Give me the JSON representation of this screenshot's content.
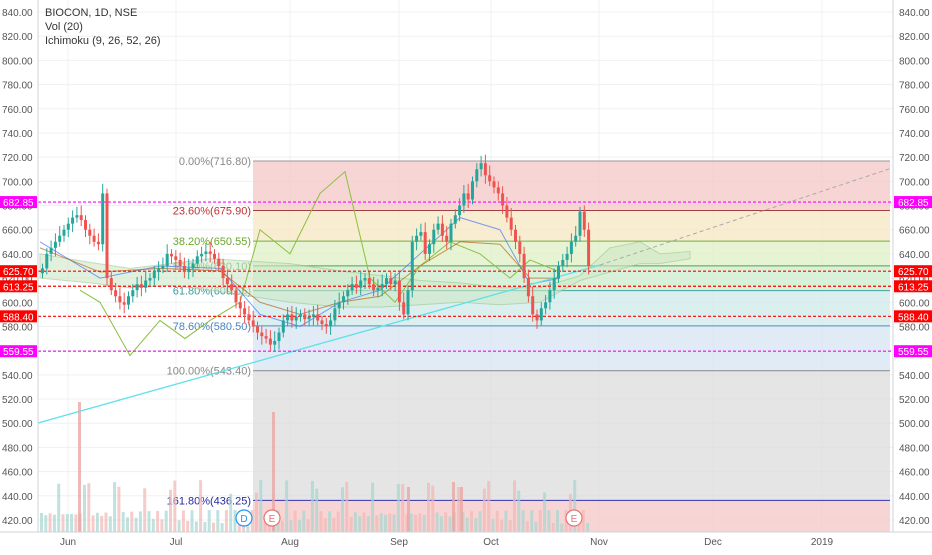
{
  "legend": {
    "title": "BIOCON, 1D, NSE",
    "vol": "Vol (20)",
    "ichimoku": "Ichimoku (9, 26, 52, 26)"
  },
  "colors": {
    "up": "#26a69a",
    "down": "#ef5350",
    "magenta_line": "#ff00ff",
    "red_line": "#ff0000",
    "trend_line": "#5ee1e8",
    "price_badge_magenta": "#ff00ff",
    "price_badge_red": "#ff0000"
  },
  "axis": {
    "y_ticks": [
      "840.00",
      "820.00",
      "800.00",
      "780.00",
      "760.00",
      "740.00",
      "720.00",
      "700.00",
      "680.00",
      "660.00",
      "640.00",
      "620.00",
      "600.00",
      "580.00",
      "560.00",
      "540.00",
      "520.00",
      "500.00",
      "480.00",
      "460.00",
      "440.00",
      "420.00"
    ],
    "x_labels": [
      "Jun",
      "Jul",
      "Aug",
      "Sep",
      "Oct",
      "Nov",
      "Dec",
      "2019"
    ]
  },
  "price_badges": [
    {
      "text": "682.85",
      "value": 682.85,
      "color": "magenta"
    },
    {
      "text": "625.70",
      "value": 625.7,
      "color": "red"
    },
    {
      "text": "613.25",
      "value": 613.25,
      "color": "red"
    },
    {
      "text": "588.40",
      "value": 588.4,
      "color": "red"
    },
    {
      "text": "559.55",
      "value": 559.55,
      "color": "magenta"
    }
  ],
  "fib_levels": [
    {
      "label": "0.00%(716.80)",
      "value": 716.8
    },
    {
      "label": "23.60%(675.90)",
      "value": 675.9
    },
    {
      "label": "38.20%(650.55)",
      "value": 650.55
    },
    {
      "label": "50.00%(630.10)",
      "value": 630.1
    },
    {
      "label": "61.80%(609.65)",
      "value": 609.65
    },
    {
      "label": "78.60%(580.50)",
      "value": 580.5
    },
    {
      "label": "100.00%(543.40)",
      "value": 543.4
    },
    {
      "label": "161.80%(436.25)",
      "value": 436.25
    }
  ],
  "event_markers": [
    {
      "text": "D",
      "kind": "dividend"
    },
    {
      "text": "E",
      "kind": "earnings"
    },
    {
      "text": "E",
      "kind": "earnings"
    }
  ],
  "chart_data": {
    "type": "candlestick",
    "title": "BIOCON, 1D, NSE",
    "y_range": [
      410,
      850
    ],
    "indicators": [
      "Vol (20)",
      "Ichimoku (9, 26, 52, 26)"
    ],
    "candles_close": [
      628,
      640,
      645,
      650,
      655,
      660,
      665,
      670,
      672,
      668,
      660,
      655,
      650,
      648,
      690,
      620,
      610,
      605,
      600,
      598,
      605,
      610,
      615,
      612,
      618,
      620,
      625,
      628,
      630,
      640,
      638,
      635,
      630,
      625,
      628,
      632,
      638,
      640,
      642,
      640,
      636,
      630,
      620,
      615,
      610,
      600,
      595,
      590,
      585,
      580,
      575,
      572,
      570,
      565,
      568,
      575,
      585,
      590,
      585,
      588,
      590,
      586,
      588,
      590,
      585,
      582,
      580,
      585,
      595,
      600,
      605,
      610,
      615,
      612,
      618,
      620,
      615,
      610,
      612,
      615,
      620,
      615,
      618,
      600,
      590,
      610,
      650,
      655,
      658,
      640,
      648,
      660,
      665,
      655,
      650,
      665,
      672,
      680,
      690,
      685,
      700,
      710,
      715,
      705,
      700,
      695,
      690,
      680,
      670,
      660,
      650,
      640,
      620,
      605,
      590,
      585,
      595,
      600,
      610,
      620,
      630,
      635,
      640,
      650,
      655,
      675,
      660,
      630
    ],
    "volume_range": [
      0,
      1
    ]
  }
}
